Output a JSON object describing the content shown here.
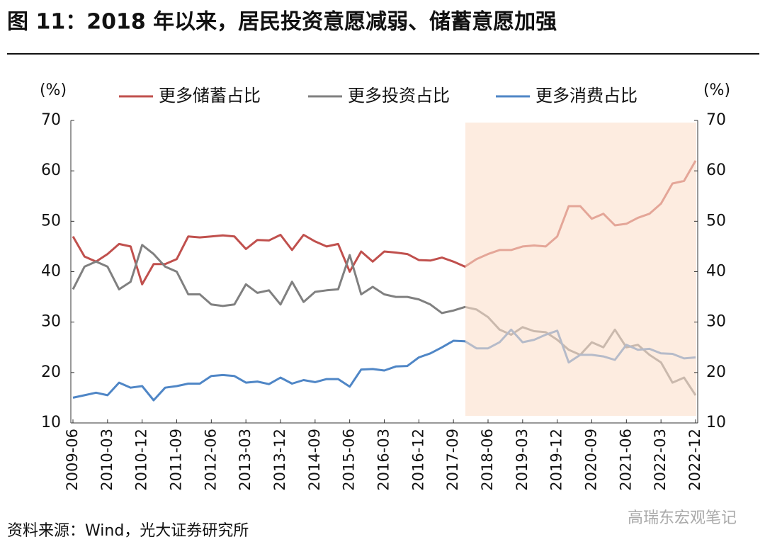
{
  "chart_data": {
    "type": "line",
    "title": "图 11：2018 年以来，居民投资意愿减弱、储蓄意愿加强",
    "y_unit": "(%)",
    "y2_unit": "(%)",
    "source": "资料来源：Wind，光大证券研究所",
    "watermark": "高瑞东宏观笔记",
    "categories": [
      "2009-06",
      null,
      null,
      "2010-03",
      null,
      null,
      "2010-12",
      null,
      null,
      "2011-09",
      null,
      null,
      "2012-06",
      null,
      null,
      "2013-03",
      null,
      null,
      "2013-12",
      null,
      null,
      "2014-09",
      null,
      null,
      "2015-06",
      null,
      null,
      "2016-03",
      null,
      null,
      "2016-12",
      null,
      null,
      "2017-09",
      null,
      null,
      "2018-06",
      null,
      null,
      "2019-03",
      null,
      null,
      "2019-12",
      null,
      null,
      "2020-09",
      null,
      null,
      "2021-06",
      null,
      null,
      "2022-03",
      null,
      null,
      "2022-12"
    ],
    "series": [
      {
        "name": "更多储蓄占比",
        "color": "#c0504d",
        "values": [
          47,
          43,
          42,
          43.5,
          45.5,
          45,
          37.5,
          41.5,
          41.5,
          42.5,
          47,
          46.8,
          47,
          47.2,
          47,
          44.5,
          46.3,
          46.2,
          47.3,
          44.3,
          47.3,
          46,
          45,
          45.5,
          40,
          44,
          42,
          44,
          43.8,
          43.5,
          42.3,
          42.2,
          42.8,
          42,
          41,
          42.5,
          43.5,
          44.3,
          44.3,
          45,
          45.2,
          45,
          47,
          53,
          53,
          50.5,
          51.5,
          49.2,
          49.5,
          50.7,
          51.5,
          53.5,
          57.5,
          58,
          62
        ]
      },
      {
        "name": "更多投资占比",
        "color": "#808080",
        "values": [
          36.5,
          41,
          42,
          41,
          36.5,
          38,
          45.3,
          43.5,
          41,
          40,
          35.5,
          35.5,
          33.5,
          33.2,
          33.5,
          37.5,
          35.8,
          36.3,
          33.5,
          38,
          34,
          36,
          36.3,
          36.5,
          43.3,
          35.5,
          37,
          35.5,
          35,
          35,
          34.5,
          33.5,
          31.8,
          32.3,
          33,
          32.5,
          31,
          28.5,
          27.5,
          29,
          28.2,
          28,
          26.5,
          24.5,
          23.5,
          26,
          25,
          28.5,
          25,
          25.5,
          23.5,
          22,
          18,
          19,
          15.5
        ]
      },
      {
        "name": "更多消费占比",
        "color": "#4f86c6",
        "values": [
          15,
          15.5,
          16,
          15.5,
          18,
          17,
          17.3,
          14.5,
          17,
          17.3,
          17.8,
          17.8,
          19.3,
          19.5,
          19.3,
          18,
          18.2,
          17.7,
          19,
          17.8,
          18.5,
          18.1,
          18.7,
          18.7,
          17.2,
          20.6,
          20.7,
          20.4,
          21.2,
          21.3,
          23,
          23.8,
          25,
          26.3,
          26.2,
          24.8,
          24.8,
          26,
          28.5,
          26,
          26.5,
          27.5,
          28.3,
          22,
          23.5,
          23.5,
          23.2,
          22.5,
          25.5,
          24.5,
          24.7,
          23.8,
          23.7,
          22.8,
          23
        ]
      }
    ],
    "ylim": [
      10,
      70
    ],
    "yticks": [
      10,
      20,
      30,
      40,
      50,
      60,
      70
    ],
    "y2lim": [
      10,
      70
    ],
    "y2ticks": [
      10,
      20,
      30,
      40,
      50,
      60,
      70
    ]
  }
}
